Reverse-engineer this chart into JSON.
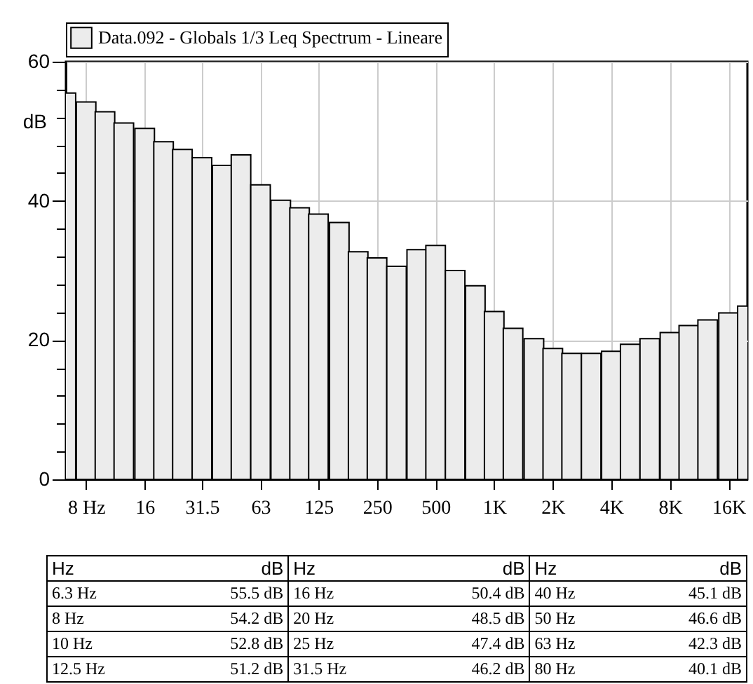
{
  "chart_data": {
    "type": "bar",
    "ylabel": "dB",
    "log": "x",
    "grid": true,
    "legend": "top",
    "x": [
      6.3,
      8,
      10,
      12.5,
      16,
      20,
      25,
      31.5,
      40,
      50,
      63,
      80,
      100,
      125,
      160,
      200,
      250,
      315,
      400,
      500,
      630,
      800,
      1000,
      1250,
      1600,
      2000,
      2500,
      3150,
      4000,
      5000,
      6300,
      8000,
      10000,
      12500,
      16000,
      20000
    ],
    "series": [
      {
        "name": "Data.092 - Globals 1/3 Leq Spectrum - Lineare",
        "color": "#ececec",
        "values": [
          55.5,
          54.2,
          52.8,
          51.2,
          50.4,
          48.5,
          47.4,
          46.2,
          45.1,
          46.6,
          42.3,
          40.1,
          39.0,
          38.1,
          36.9,
          32.7,
          31.8,
          30.6,
          33.0,
          33.6,
          30.0,
          27.8,
          24.1,
          21.7,
          20.2,
          18.8,
          18.1,
          18.1,
          18.4,
          19.4,
          20.2,
          21.1,
          22.1,
          22.9,
          23.9,
          24.9
        ]
      }
    ],
    "xlim": [
      6.3,
      20000
    ],
    "xticks": [
      {
        "value": 8,
        "label": "8 Hz"
      },
      16,
      31.5,
      63,
      125,
      250,
      500,
      {
        "value": 1000,
        "label": "1K"
      },
      {
        "value": 2000,
        "label": "2K"
      },
      {
        "value": 4000,
        "label": "4K"
      },
      {
        "value": 8000,
        "label": "8K"
      },
      {
        "value": 16000,
        "label": "16K"
      }
    ],
    "ylim": [
      0,
      60
    ],
    "yticks": [
      0,
      {
        "value": 4,
        "label": null
      },
      {
        "value": 8,
        "label": null
      },
      {
        "value": 12,
        "label": null
      },
      {
        "value": 16,
        "label": null
      },
      20,
      {
        "value": 24,
        "label": null
      },
      {
        "value": 28,
        "label": null
      },
      {
        "value": 32,
        "label": null
      },
      {
        "value": 36,
        "label": null
      },
      40,
      {
        "value": 44,
        "label": null
      },
      {
        "value": 48,
        "label": null
      },
      {
        "value": 52,
        "label": null
      },
      {
        "value": 56,
        "label": null
      },
      60
    ],
    "annotations": [
      "Hz",
      "dB",
      "6.3 Hz",
      "55.5 dB",
      "8 Hz",
      "54.2 dB",
      "10 Hz",
      "52.8 dB",
      "12.5 Hz",
      "51.2 dB",
      "16 Hz",
      "50.4 dB",
      "20 Hz",
      "48.5 dB",
      "25 Hz",
      "47.4 dB",
      "31.5 Hz",
      "46.2 dB",
      "40 Hz",
      "45.1 dB",
      "50 Hz",
      "46.6 dB",
      "63 Hz",
      "42.3 dB",
      "80 Hz",
      "40.1 dB"
    ]
  }
}
